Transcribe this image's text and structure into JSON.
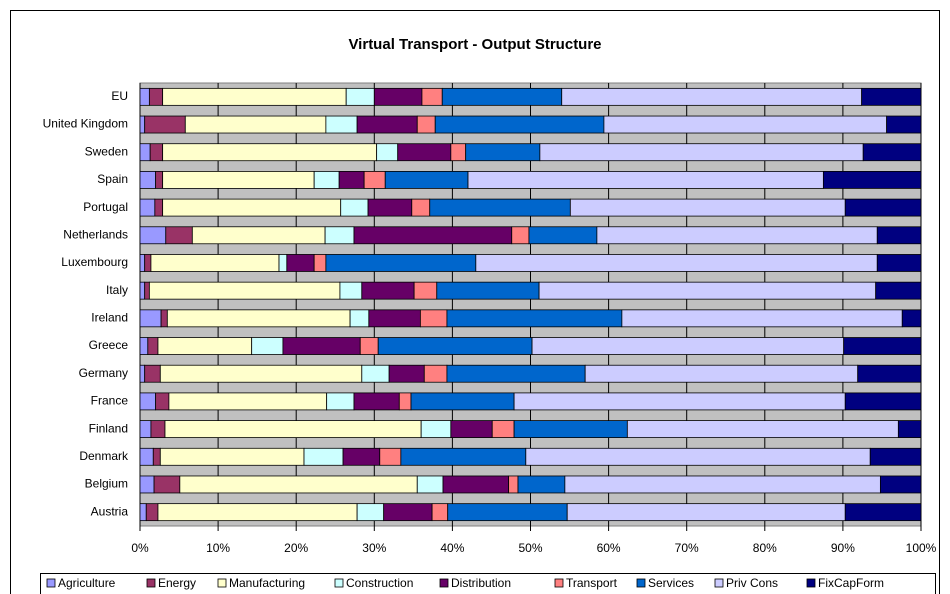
{
  "chart_data": {
    "type": "stacked-barh",
    "title": "Virtual Transport - Output Structure",
    "categories": [
      "EU",
      "United Kingdom",
      "Sweden",
      "Spain",
      "Portugal",
      "Netherlands",
      "Luxembourg",
      "Italy",
      "Ireland",
      "Greece",
      "Germany",
      "France",
      "Finland",
      "Denmark",
      "Belgium",
      "Austria"
    ],
    "series": [
      {
        "name": "Agriculture",
        "color": "#9999ff",
        "values": [
          1.2,
          0.6,
          1.3,
          2.0,
          1.9,
          3.3,
          0.6,
          0.6,
          2.7,
          1.0,
          0.6,
          2.0,
          1.4,
          1.7,
          1.8,
          0.8
        ]
      },
      {
        "name": "Energy",
        "color": "#993366",
        "values": [
          1.7,
          5.2,
          1.6,
          0.9,
          1.0,
          3.4,
          0.8,
          0.6,
          0.8,
          1.3,
          2.0,
          1.7,
          1.8,
          0.9,
          3.3,
          1.5
        ]
      },
      {
        "name": "Manufacturing",
        "color": "#ffffcc",
        "values": [
          23.5,
          18.0,
          27.4,
          19.4,
          22.8,
          17.0,
          16.4,
          24.4,
          23.4,
          12.0,
          25.8,
          20.2,
          32.8,
          18.4,
          30.4,
          25.5
        ]
      },
      {
        "name": "Construction",
        "color": "#ccffff",
        "values": [
          3.6,
          4.0,
          2.7,
          3.2,
          3.5,
          3.7,
          1.0,
          2.8,
          2.4,
          4.0,
          3.5,
          3.5,
          3.8,
          5.0,
          3.3,
          3.4
        ]
      },
      {
        "name": "Distribution",
        "color": "#660066",
        "values": [
          6.1,
          7.7,
          6.8,
          3.2,
          5.6,
          20.2,
          3.5,
          6.7,
          6.6,
          9.9,
          4.5,
          5.8,
          5.3,
          4.7,
          8.4,
          6.2
        ]
      },
      {
        "name": "Transport",
        "color": "#ff8080",
        "values": [
          2.6,
          2.3,
          1.9,
          2.7,
          2.3,
          2.2,
          1.5,
          2.9,
          3.4,
          2.3,
          2.9,
          1.5,
          2.8,
          2.7,
          1.2,
          2.0
        ]
      },
      {
        "name": "Services",
        "color": "#0066cc",
        "values": [
          15.3,
          21.6,
          9.5,
          10.6,
          18.0,
          8.7,
          19.2,
          13.1,
          22.4,
          19.7,
          17.7,
          13.2,
          14.5,
          16.0,
          6.0,
          15.3
        ]
      },
      {
        "name": "Priv Cons",
        "color": "#ccccff",
        "values": [
          38.4,
          36.2,
          41.4,
          45.5,
          35.2,
          35.9,
          51.4,
          43.1,
          35.9,
          39.9,
          34.9,
          42.4,
          34.7,
          44.1,
          40.4,
          35.6
        ]
      },
      {
        "name": "FixCapForm",
        "color": "#000080",
        "values": [
          7.6,
          4.4,
          7.4,
          12.5,
          9.7,
          5.6,
          5.6,
          5.8,
          2.4,
          9.9,
          8.1,
          9.7,
          2.9,
          6.5,
          5.2,
          9.7
        ]
      }
    ],
    "xlim": [
      0,
      100
    ],
    "xticks": [
      {
        "value": 0,
        "label": "0%"
      },
      {
        "value": 10,
        "label": "10%"
      },
      {
        "value": 20,
        "label": "20%"
      },
      {
        "value": 30,
        "label": "30%"
      },
      {
        "value": 40,
        "label": "40%"
      },
      {
        "value": 50,
        "label": "50%"
      },
      {
        "value": 60,
        "label": "60%"
      },
      {
        "value": 70,
        "label": "70%"
      },
      {
        "value": 80,
        "label": "80%"
      },
      {
        "value": 90,
        "label": "90%"
      },
      {
        "value": 100,
        "label": "100%"
      }
    ],
    "grid": true,
    "legend": "bottom"
  }
}
